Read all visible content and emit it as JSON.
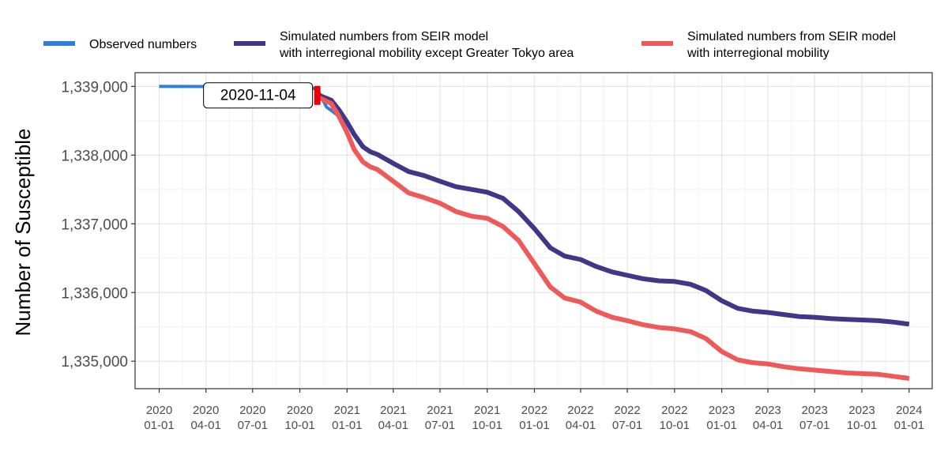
{
  "chart_data": {
    "type": "line",
    "title": "",
    "xlabel": "",
    "ylabel": "Number of Susceptible",
    "ylim": [
      1334600,
      1339200
    ],
    "xlim": [
      "2019-11-15",
      "2024-02-15"
    ],
    "grid": true,
    "legend_position": "top",
    "x_ticks": [
      {
        "date": "2020-01-01",
        "line1": "2020",
        "line2": "01-01"
      },
      {
        "date": "2020-04-01",
        "line1": "2020",
        "line2": "04-01"
      },
      {
        "date": "2020-07-01",
        "line1": "2020",
        "line2": "07-01"
      },
      {
        "date": "2020-10-01",
        "line1": "2020",
        "line2": "10-01"
      },
      {
        "date": "2021-01-01",
        "line1": "2021",
        "line2": "01-01"
      },
      {
        "date": "2021-04-01",
        "line1": "2021",
        "line2": "04-01"
      },
      {
        "date": "2021-07-01",
        "line1": "2021",
        "line2": "07-01"
      },
      {
        "date": "2021-10-01",
        "line1": "2021",
        "line2": "10-01"
      },
      {
        "date": "2022-01-01",
        "line1": "2022",
        "line2": "01-01"
      },
      {
        "date": "2022-04-01",
        "line1": "2022",
        "line2": "04-01"
      },
      {
        "date": "2022-07-01",
        "line1": "2022",
        "line2": "07-01"
      },
      {
        "date": "2022-10-01",
        "line1": "2022",
        "line2": "10-01"
      },
      {
        "date": "2023-01-01",
        "line1": "2023",
        "line2": "01-01"
      },
      {
        "date": "2023-04-01",
        "line1": "2023",
        "line2": "04-01"
      },
      {
        "date": "2023-07-01",
        "line1": "2023",
        "line2": "07-01"
      },
      {
        "date": "2023-10-01",
        "line1": "2023",
        "line2": "10-01"
      },
      {
        "date": "2024-01-01",
        "line1": "2024",
        "line2": "01-01"
      }
    ],
    "y_ticks": [
      {
        "value": 1335000,
        "label": "1,335,000"
      },
      {
        "value": 1336000,
        "label": "1,336,000"
      },
      {
        "value": 1337000,
        "label": "1,337,000"
      },
      {
        "value": 1338000,
        "label": "1,338,000"
      },
      {
        "value": 1339000,
        "label": "1,339,000"
      }
    ],
    "series": [
      {
        "name": "Observed numbers",
        "legend_lines": [
          "Observed numbers"
        ],
        "color": "#2F7ED8",
        "points": [
          [
            "2020-01-01",
            1339000
          ],
          [
            "2020-06-01",
            1338999
          ],
          [
            "2020-09-01",
            1338995
          ],
          [
            "2020-10-15",
            1338985
          ],
          [
            "2020-11-04",
            1338960
          ],
          [
            "2020-11-15",
            1338800
          ],
          [
            "2020-11-22",
            1338700
          ],
          [
            "2020-12-01",
            1338650
          ],
          [
            "2020-12-10",
            1338600
          ],
          [
            "2020-12-20",
            1338540
          ]
        ]
      },
      {
        "name": "Simulated numbers from SEIR model with interregional mobility except Greater Tokyo area",
        "legend_lines": [
          "Simulated numbers from SEIR model",
          "with interregional mobility except Greater Tokyo area"
        ],
        "color": "#3F3787",
        "points": [
          [
            "2020-11-04",
            1338880
          ],
          [
            "2020-12-01",
            1338800
          ],
          [
            "2020-12-15",
            1338670
          ],
          [
            "2021-01-01",
            1338480
          ],
          [
            "2021-01-15",
            1338300
          ],
          [
            "2021-02-01",
            1338120
          ],
          [
            "2021-02-15",
            1338050
          ],
          [
            "2021-03-01",
            1338010
          ],
          [
            "2021-04-01",
            1337880
          ],
          [
            "2021-05-01",
            1337760
          ],
          [
            "2021-06-01",
            1337700
          ],
          [
            "2021-07-01",
            1337620
          ],
          [
            "2021-08-01",
            1337540
          ],
          [
            "2021-09-01",
            1337500
          ],
          [
            "2021-10-01",
            1337460
          ],
          [
            "2021-11-01",
            1337370
          ],
          [
            "2021-12-01",
            1337180
          ],
          [
            "2022-01-01",
            1336930
          ],
          [
            "2022-02-01",
            1336650
          ],
          [
            "2022-03-01",
            1336530
          ],
          [
            "2022-04-01",
            1336480
          ],
          [
            "2022-05-01",
            1336380
          ],
          [
            "2022-06-01",
            1336300
          ],
          [
            "2022-07-01",
            1336250
          ],
          [
            "2022-08-01",
            1336200
          ],
          [
            "2022-09-01",
            1336170
          ],
          [
            "2022-10-01",
            1336160
          ],
          [
            "2022-11-01",
            1336120
          ],
          [
            "2022-12-01",
            1336030
          ],
          [
            "2023-01-01",
            1335880
          ],
          [
            "2023-02-01",
            1335770
          ],
          [
            "2023-03-01",
            1335730
          ],
          [
            "2023-04-01",
            1335710
          ],
          [
            "2023-05-01",
            1335680
          ],
          [
            "2023-06-01",
            1335650
          ],
          [
            "2023-07-01",
            1335640
          ],
          [
            "2023-08-01",
            1335620
          ],
          [
            "2023-09-01",
            1335610
          ],
          [
            "2023-10-01",
            1335600
          ],
          [
            "2023-11-01",
            1335590
          ],
          [
            "2023-12-01",
            1335570
          ],
          [
            "2024-01-01",
            1335540
          ]
        ]
      },
      {
        "name": "Simulated numbers from SEIR model with interregional mobility",
        "legend_lines": [
          "Simulated numbers from SEIR model",
          "with interregional mobility"
        ],
        "color": "#EE5A5A",
        "points": [
          [
            "2020-11-04",
            1338850
          ],
          [
            "2020-12-01",
            1338750
          ],
          [
            "2020-12-15",
            1338580
          ],
          [
            "2021-01-01",
            1338330
          ],
          [
            "2021-01-15",
            1338080
          ],
          [
            "2021-02-01",
            1337900
          ],
          [
            "2021-02-15",
            1337830
          ],
          [
            "2021-03-01",
            1337790
          ],
          [
            "2021-04-01",
            1337620
          ],
          [
            "2021-05-01",
            1337450
          ],
          [
            "2021-06-01",
            1337380
          ],
          [
            "2021-07-01",
            1337300
          ],
          [
            "2021-08-01",
            1337180
          ],
          [
            "2021-09-01",
            1337110
          ],
          [
            "2021-10-01",
            1337080
          ],
          [
            "2021-11-01",
            1336960
          ],
          [
            "2021-12-01",
            1336760
          ],
          [
            "2022-01-01",
            1336420
          ],
          [
            "2022-02-01",
            1336080
          ],
          [
            "2022-03-01",
            1335920
          ],
          [
            "2022-04-01",
            1335860
          ],
          [
            "2022-05-01",
            1335730
          ],
          [
            "2022-06-01",
            1335640
          ],
          [
            "2022-07-01",
            1335590
          ],
          [
            "2022-08-01",
            1335530
          ],
          [
            "2022-09-01",
            1335490
          ],
          [
            "2022-10-01",
            1335470
          ],
          [
            "2022-11-01",
            1335430
          ],
          [
            "2022-12-01",
            1335330
          ],
          [
            "2023-01-01",
            1335140
          ],
          [
            "2023-02-01",
            1335020
          ],
          [
            "2023-03-01",
            1334980
          ],
          [
            "2023-04-01",
            1334960
          ],
          [
            "2023-05-01",
            1334920
          ],
          [
            "2023-06-01",
            1334890
          ],
          [
            "2023-07-01",
            1334870
          ],
          [
            "2023-08-01",
            1334850
          ],
          [
            "2023-09-01",
            1334830
          ],
          [
            "2023-10-01",
            1334820
          ],
          [
            "2023-11-01",
            1334810
          ],
          [
            "2023-12-01",
            1334780
          ],
          [
            "2024-01-01",
            1334750
          ]
        ]
      }
    ],
    "annotations": [
      {
        "label": "2020-11-04",
        "date": "2020-11-04",
        "value": 1338870,
        "marker_color": "#E8000B"
      }
    ]
  }
}
